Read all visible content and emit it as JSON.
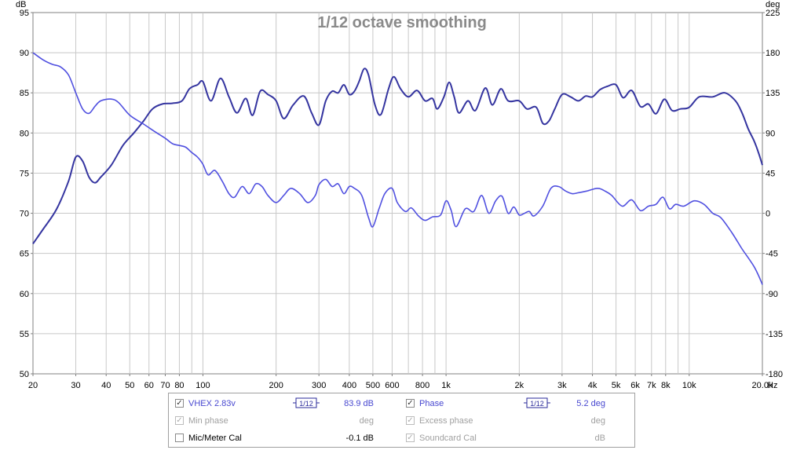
{
  "chart_data": {
    "type": "line",
    "title": "1/12 octave smoothing",
    "y_left_unit": "dB",
    "y_right_unit": "deg",
    "x_unit": "Hz",
    "x_scale": "log",
    "xlim": [
      20,
      20000
    ],
    "ylim_left": [
      50,
      95
    ],
    "ylim_right": [
      -180,
      225
    ],
    "grid": true,
    "x_tick_labels": [
      {
        "v": 20,
        "t": "20"
      },
      {
        "v": 30,
        "t": "30"
      },
      {
        "v": 40,
        "t": "40"
      },
      {
        "v": 50,
        "t": "50"
      },
      {
        "v": 60,
        "t": "60"
      },
      {
        "v": 70,
        "t": "70"
      },
      {
        "v": 80,
        "t": "80"
      },
      {
        "v": 100,
        "t": "100"
      },
      {
        "v": 200,
        "t": "200"
      },
      {
        "v": 300,
        "t": "300"
      },
      {
        "v": 400,
        "t": "400"
      },
      {
        "v": 500,
        "t": "500"
      },
      {
        "v": 600,
        "t": "600"
      },
      {
        "v": 800,
        "t": "800"
      },
      {
        "v": 1000,
        "t": "1k"
      },
      {
        "v": 2000,
        "t": "2k"
      },
      {
        "v": 3000,
        "t": "3k"
      },
      {
        "v": 4000,
        "t": "4k"
      },
      {
        "v": 5000,
        "t": "5k"
      },
      {
        "v": 6000,
        "t": "6k"
      },
      {
        "v": 7000,
        "t": "7k"
      },
      {
        "v": 8000,
        "t": "8k"
      },
      {
        "v": 10000,
        "t": "10k"
      },
      {
        "v": 20000,
        "t": "20.0k"
      }
    ],
    "y_left_ticks": [
      50,
      55,
      60,
      65,
      70,
      75,
      80,
      85,
      90,
      95
    ],
    "y_right_ticks": [
      -180,
      -135,
      -90,
      -45,
      0,
      45,
      90,
      135,
      180,
      225
    ],
    "series": [
      {
        "name": "VHEX 2.83v",
        "axis": "left",
        "color": "#3535a0",
        "points": [
          [
            20,
            66.2
          ],
          [
            22,
            68
          ],
          [
            25,
            70.5
          ],
          [
            28,
            74
          ],
          [
            30,
            77
          ],
          [
            32,
            76.5
          ],
          [
            34,
            74.5
          ],
          [
            36,
            73.8
          ],
          [
            38,
            74.5
          ],
          [
            42,
            76
          ],
          [
            47,
            78.5
          ],
          [
            52,
            80
          ],
          [
            57,
            81.5
          ],
          [
            62,
            83
          ],
          [
            68,
            83.6
          ],
          [
            75,
            83.7
          ],
          [
            82,
            84
          ],
          [
            88,
            85.5
          ],
          [
            95,
            86
          ],
          [
            100,
            86.4
          ],
          [
            108,
            84
          ],
          [
            118,
            86.8
          ],
          [
            128,
            84.5
          ],
          [
            138,
            82.5
          ],
          [
            150,
            84.3
          ],
          [
            160,
            82.2
          ],
          [
            172,
            85.2
          ],
          [
            185,
            84.8
          ],
          [
            200,
            84
          ],
          [
            215,
            81.8
          ],
          [
            235,
            83.5
          ],
          [
            260,
            84.6
          ],
          [
            280,
            82.5
          ],
          [
            300,
            81
          ],
          [
            320,
            84
          ],
          [
            340,
            85.2
          ],
          [
            360,
            85
          ],
          [
            380,
            86
          ],
          [
            400,
            84.8
          ],
          [
            420,
            85.2
          ],
          [
            440,
            86.5
          ],
          [
            460,
            88
          ],
          [
            480,
            87.2
          ],
          [
            510,
            83.5
          ],
          [
            540,
            82.3
          ],
          [
            580,
            85.5
          ],
          [
            610,
            87
          ],
          [
            650,
            85.5
          ],
          [
            700,
            84.5
          ],
          [
            760,
            85.3
          ],
          [
            820,
            84
          ],
          [
            880,
            84.3
          ],
          [
            920,
            83
          ],
          [
            980,
            84.5
          ],
          [
            1030,
            86.3
          ],
          [
            1080,
            84.5
          ],
          [
            1130,
            82.5
          ],
          [
            1230,
            84
          ],
          [
            1320,
            82.8
          ],
          [
            1450,
            85.6
          ],
          [
            1550,
            83.5
          ],
          [
            1680,
            85.5
          ],
          [
            1800,
            84
          ],
          [
            2000,
            84
          ],
          [
            2150,
            83
          ],
          [
            2350,
            83.2
          ],
          [
            2500,
            81.2
          ],
          [
            2650,
            81.5
          ],
          [
            2800,
            83
          ],
          [
            3000,
            84.8
          ],
          [
            3250,
            84.5
          ],
          [
            3500,
            84
          ],
          [
            3750,
            84.6
          ],
          [
            4000,
            84.5
          ],
          [
            4300,
            85.4
          ],
          [
            4600,
            85.8
          ],
          [
            5000,
            86
          ],
          [
            5350,
            84.4
          ],
          [
            5800,
            85.3
          ],
          [
            6300,
            83.3
          ],
          [
            6800,
            83.6
          ],
          [
            7300,
            82.4
          ],
          [
            7900,
            84.2
          ],
          [
            8500,
            82.8
          ],
          [
            9200,
            83
          ],
          [
            10000,
            83.2
          ],
          [
            11000,
            84.5
          ],
          [
            12500,
            84.5
          ],
          [
            14000,
            85
          ],
          [
            15500,
            84
          ],
          [
            16500,
            82.5
          ],
          [
            17500,
            80.5
          ],
          [
            18500,
            79
          ],
          [
            19300,
            77.5
          ],
          [
            20000,
            76
          ]
        ]
      },
      {
        "name": "Phase",
        "axis": "right",
        "color": "#5050e0",
        "points": [
          [
            20,
            180
          ],
          [
            22,
            172
          ],
          [
            24,
            167
          ],
          [
            26,
            164
          ],
          [
            28,
            155
          ],
          [
            30,
            135
          ],
          [
            32,
            117
          ],
          [
            34,
            112
          ],
          [
            36,
            120
          ],
          [
            38,
            126
          ],
          [
            42,
            128
          ],
          [
            45,
            124
          ],
          [
            50,
            110
          ],
          [
            57,
            100
          ],
          [
            63,
            92
          ],
          [
            70,
            84
          ],
          [
            75,
            78
          ],
          [
            80,
            76
          ],
          [
            85,
            74
          ],
          [
            90,
            68
          ],
          [
            95,
            63
          ],
          [
            100,
            55
          ],
          [
            105,
            43
          ],
          [
            112,
            48
          ],
          [
            120,
            36
          ],
          [
            128,
            22
          ],
          [
            135,
            18
          ],
          [
            145,
            30
          ],
          [
            155,
            22
          ],
          [
            165,
            33
          ],
          [
            175,
            30
          ],
          [
            185,
            20
          ],
          [
            200,
            12
          ],
          [
            215,
            20
          ],
          [
            230,
            28
          ],
          [
            250,
            22
          ],
          [
            270,
            12
          ],
          [
            290,
            20
          ],
          [
            300,
            32
          ],
          [
            320,
            38
          ],
          [
            340,
            30
          ],
          [
            360,
            33
          ],
          [
            380,
            22
          ],
          [
            400,
            30
          ],
          [
            420,
            28
          ],
          [
            450,
            20
          ],
          [
            480,
            -5
          ],
          [
            500,
            -15
          ],
          [
            530,
            5
          ],
          [
            560,
            22
          ],
          [
            600,
            28
          ],
          [
            630,
            12
          ],
          [
            680,
            2
          ],
          [
            720,
            6
          ],
          [
            770,
            -3
          ],
          [
            820,
            -8
          ],
          [
            880,
            -4
          ],
          [
            950,
            -2
          ],
          [
            1000,
            14
          ],
          [
            1050,
            3
          ],
          [
            1100,
            -15
          ],
          [
            1200,
            5
          ],
          [
            1300,
            2
          ],
          [
            1400,
            20
          ],
          [
            1500,
            0
          ],
          [
            1600,
            14
          ],
          [
            1700,
            19
          ],
          [
            1800,
            0
          ],
          [
            1900,
            7
          ],
          [
            2000,
            -2
          ],
          [
            2100,
            0
          ],
          [
            2200,
            2
          ],
          [
            2300,
            -3
          ],
          [
            2500,
            8
          ],
          [
            2700,
            28
          ],
          [
            2900,
            30
          ],
          [
            3100,
            25
          ],
          [
            3300,
            22
          ],
          [
            3500,
            23
          ],
          [
            3800,
            25
          ],
          [
            4200,
            28
          ],
          [
            4500,
            25
          ],
          [
            4800,
            20
          ],
          [
            5300,
            8
          ],
          [
            5800,
            15
          ],
          [
            6300,
            3
          ],
          [
            6800,
            8
          ],
          [
            7300,
            10
          ],
          [
            7800,
            18
          ],
          [
            8300,
            5
          ],
          [
            8800,
            10
          ],
          [
            9500,
            8
          ],
          [
            10500,
            14
          ],
          [
            11500,
            10
          ],
          [
            12500,
            0
          ],
          [
            13500,
            -5
          ],
          [
            15000,
            -22
          ],
          [
            16500,
            -40
          ],
          [
            17500,
            -50
          ],
          [
            18500,
            -60
          ],
          [
            19300,
            -70
          ],
          [
            20000,
            -80
          ]
        ]
      }
    ]
  },
  "legend": {
    "rows": [
      {
        "left_checked": "✓",
        "left_label": "VHEX 2.83v",
        "left_smooth": "1/12",
        "left_value": "83.9 dB",
        "right_checked": "✓",
        "right_label": "Phase",
        "right_smooth": "1/12",
        "right_value": "5.2 deg"
      },
      {
        "left_checked": "✓",
        "left_label": "Min phase",
        "left_value": "deg",
        "right_checked": "✓",
        "right_label": "Excess phase",
        "right_value": "deg"
      },
      {
        "left_checked": "",
        "left_label": "Mic/Meter Cal",
        "left_value": "-0.1 dB",
        "right_checked": "✓",
        "right_label": "Soundcard Cal",
        "right_value": "dB"
      }
    ]
  },
  "colors": {
    "grid": "#c8c8c8",
    "axis": "#808080",
    "title": "#8a8a8a",
    "legend_active": "#4848d0",
    "legend_disabled": "#a0a0a0"
  }
}
